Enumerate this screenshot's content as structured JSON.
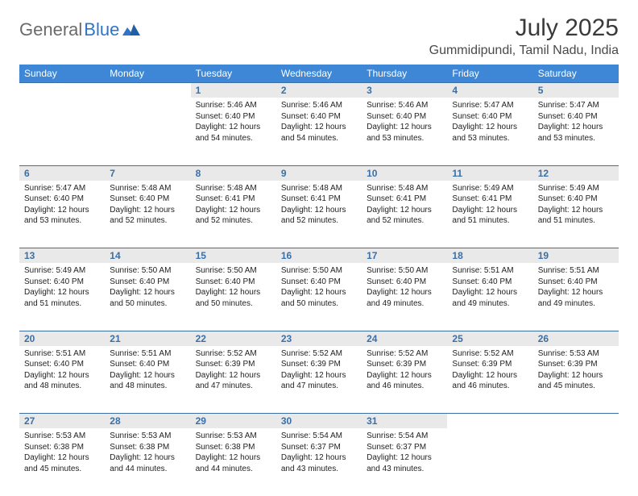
{
  "logo": {
    "part1": "General",
    "part2": "Blue"
  },
  "title": "July 2025",
  "location": "Gummidipundi, Tamil Nadu, India",
  "colors": {
    "header_bg": "#3d87d6",
    "header_text": "#ffffff",
    "daynum_bg": "#e9e9e9",
    "daynum_text": "#3a6fa8",
    "rule": "#3d6fa3",
    "logo_gray": "#6a6a6a",
    "logo_blue": "#2e75c9"
  },
  "days": [
    "Sunday",
    "Monday",
    "Tuesday",
    "Wednesday",
    "Thursday",
    "Friday",
    "Saturday"
  ],
  "weeks": [
    [
      null,
      null,
      {
        "n": "1",
        "sr": "5:46 AM",
        "ss": "6:40 PM",
        "dl": "12 hours and 54 minutes."
      },
      {
        "n": "2",
        "sr": "5:46 AM",
        "ss": "6:40 PM",
        "dl": "12 hours and 54 minutes."
      },
      {
        "n": "3",
        "sr": "5:46 AM",
        "ss": "6:40 PM",
        "dl": "12 hours and 53 minutes."
      },
      {
        "n": "4",
        "sr": "5:47 AM",
        "ss": "6:40 PM",
        "dl": "12 hours and 53 minutes."
      },
      {
        "n": "5",
        "sr": "5:47 AM",
        "ss": "6:40 PM",
        "dl": "12 hours and 53 minutes."
      }
    ],
    [
      {
        "n": "6",
        "sr": "5:47 AM",
        "ss": "6:40 PM",
        "dl": "12 hours and 53 minutes."
      },
      {
        "n": "7",
        "sr": "5:48 AM",
        "ss": "6:40 PM",
        "dl": "12 hours and 52 minutes."
      },
      {
        "n": "8",
        "sr": "5:48 AM",
        "ss": "6:41 PM",
        "dl": "12 hours and 52 minutes."
      },
      {
        "n": "9",
        "sr": "5:48 AM",
        "ss": "6:41 PM",
        "dl": "12 hours and 52 minutes."
      },
      {
        "n": "10",
        "sr": "5:48 AM",
        "ss": "6:41 PM",
        "dl": "12 hours and 52 minutes."
      },
      {
        "n": "11",
        "sr": "5:49 AM",
        "ss": "6:41 PM",
        "dl": "12 hours and 51 minutes."
      },
      {
        "n": "12",
        "sr": "5:49 AM",
        "ss": "6:40 PM",
        "dl": "12 hours and 51 minutes."
      }
    ],
    [
      {
        "n": "13",
        "sr": "5:49 AM",
        "ss": "6:40 PM",
        "dl": "12 hours and 51 minutes."
      },
      {
        "n": "14",
        "sr": "5:50 AM",
        "ss": "6:40 PM",
        "dl": "12 hours and 50 minutes."
      },
      {
        "n": "15",
        "sr": "5:50 AM",
        "ss": "6:40 PM",
        "dl": "12 hours and 50 minutes."
      },
      {
        "n": "16",
        "sr": "5:50 AM",
        "ss": "6:40 PM",
        "dl": "12 hours and 50 minutes."
      },
      {
        "n": "17",
        "sr": "5:50 AM",
        "ss": "6:40 PM",
        "dl": "12 hours and 49 minutes."
      },
      {
        "n": "18",
        "sr": "5:51 AM",
        "ss": "6:40 PM",
        "dl": "12 hours and 49 minutes."
      },
      {
        "n": "19",
        "sr": "5:51 AM",
        "ss": "6:40 PM",
        "dl": "12 hours and 49 minutes."
      }
    ],
    [
      {
        "n": "20",
        "sr": "5:51 AM",
        "ss": "6:40 PM",
        "dl": "12 hours and 48 minutes."
      },
      {
        "n": "21",
        "sr": "5:51 AM",
        "ss": "6:40 PM",
        "dl": "12 hours and 48 minutes."
      },
      {
        "n": "22",
        "sr": "5:52 AM",
        "ss": "6:39 PM",
        "dl": "12 hours and 47 minutes."
      },
      {
        "n": "23",
        "sr": "5:52 AM",
        "ss": "6:39 PM",
        "dl": "12 hours and 47 minutes."
      },
      {
        "n": "24",
        "sr": "5:52 AM",
        "ss": "6:39 PM",
        "dl": "12 hours and 46 minutes."
      },
      {
        "n": "25",
        "sr": "5:52 AM",
        "ss": "6:39 PM",
        "dl": "12 hours and 46 minutes."
      },
      {
        "n": "26",
        "sr": "5:53 AM",
        "ss": "6:39 PM",
        "dl": "12 hours and 45 minutes."
      }
    ],
    [
      {
        "n": "27",
        "sr": "5:53 AM",
        "ss": "6:38 PM",
        "dl": "12 hours and 45 minutes."
      },
      {
        "n": "28",
        "sr": "5:53 AM",
        "ss": "6:38 PM",
        "dl": "12 hours and 44 minutes."
      },
      {
        "n": "29",
        "sr": "5:53 AM",
        "ss": "6:38 PM",
        "dl": "12 hours and 44 minutes."
      },
      {
        "n": "30",
        "sr": "5:54 AM",
        "ss": "6:37 PM",
        "dl": "12 hours and 43 minutes."
      },
      {
        "n": "31",
        "sr": "5:54 AM",
        "ss": "6:37 PM",
        "dl": "12 hours and 43 minutes."
      },
      null,
      null
    ]
  ],
  "labels": {
    "sunrise": "Sunrise:",
    "sunset": "Sunset:",
    "daylight": "Daylight:"
  }
}
